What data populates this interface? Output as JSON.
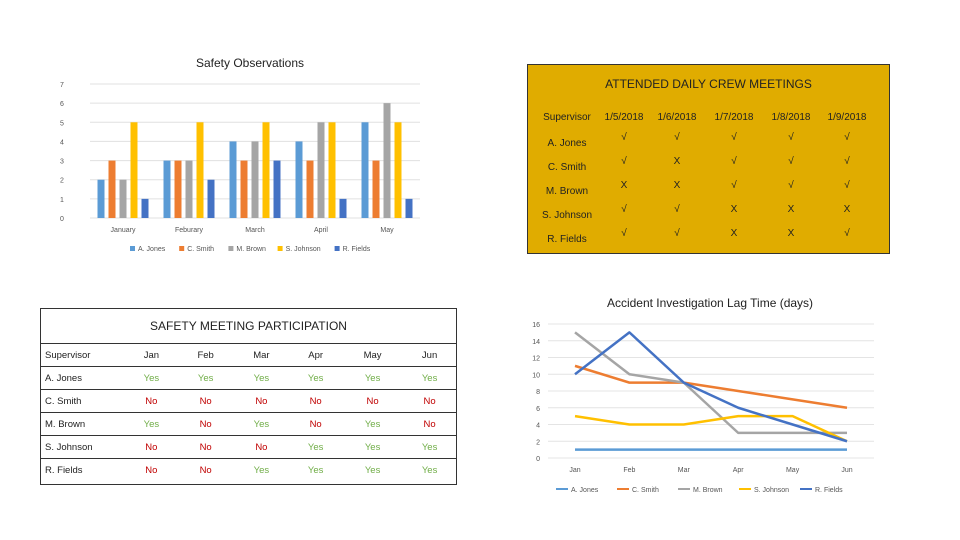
{
  "chart_data": [
    {
      "type": "bar",
      "title": "Safety Observations",
      "categories": [
        "January",
        "Feburary",
        "March",
        "April",
        "May"
      ],
      "ylim": [
        0,
        7
      ],
      "yticks": [
        0,
        1,
        2,
        3,
        4,
        5,
        6,
        7
      ],
      "grid": true,
      "legend": "bottom",
      "series": [
        {
          "name": "A. Jones",
          "color": "#5b9bd5",
          "values": [
            2,
            3,
            4,
            4,
            5
          ]
        },
        {
          "name": "C. Smith",
          "color": "#ed7d31",
          "values": [
            3,
            3,
            3,
            3,
            3
          ]
        },
        {
          "name": "M. Brown",
          "color": "#a5a5a5",
          "values": [
            2,
            3,
            4,
            5,
            6
          ]
        },
        {
          "name": "S. Johnson",
          "color": "#ffc000",
          "values": [
            5,
            5,
            5,
            5,
            5
          ]
        },
        {
          "name": "R. Fields",
          "color": "#4472c4",
          "values": [
            1,
            2,
            3,
            1,
            1
          ]
        }
      ]
    },
    {
      "type": "table",
      "title": "ATTENDED DAILY CREW MEETINGS",
      "background": "#e0ac00",
      "columns": [
        "Supervisor",
        "1/5/2018",
        "1/6/2018",
        "1/7/2018",
        "1/8/2018",
        "1/9/2018"
      ],
      "rows": [
        [
          "A. Jones",
          "√",
          "√",
          "√",
          "√",
          "√"
        ],
        [
          "C. Smith",
          "√",
          "X",
          "√",
          "√",
          "√"
        ],
        [
          "M. Brown",
          "X",
          "X",
          "√",
          "√",
          "√"
        ],
        [
          "S. Johnson",
          "√",
          "√",
          "X",
          "X",
          "X"
        ],
        [
          "R. Fields",
          "√",
          "√",
          "X",
          "X",
          "√"
        ]
      ]
    },
    {
      "type": "table",
      "title": "SAFETY MEETING PARTICIPATION",
      "columns": [
        "Supervisor",
        "Jan",
        "Feb",
        "Mar",
        "Apr",
        "May",
        "Jun"
      ],
      "yes_color": "#70ad47",
      "no_color": "#c00000",
      "rows": [
        [
          "A. Jones",
          "Yes",
          "Yes",
          "Yes",
          "Yes",
          "Yes",
          "Yes"
        ],
        [
          "C. Smith",
          "No",
          "No",
          "No",
          "No",
          "No",
          "No"
        ],
        [
          "M. Brown",
          "Yes",
          "No",
          "Yes",
          "No",
          "Yes",
          "No"
        ],
        [
          "S. Johnson",
          "No",
          "No",
          "No",
          "Yes",
          "Yes",
          "Yes"
        ],
        [
          "R. Fields",
          "No",
          "No",
          "Yes",
          "Yes",
          "Yes",
          "Yes"
        ]
      ]
    },
    {
      "type": "line",
      "title": "Accident Investigation Lag Time (days)",
      "categories": [
        "Jan",
        "Feb",
        "Mar",
        "Apr",
        "May",
        "Jun"
      ],
      "ylim": [
        0,
        16
      ],
      "yticks": [
        0,
        2,
        4,
        6,
        8,
        10,
        12,
        14,
        16
      ],
      "grid": true,
      "legend": "bottom",
      "series": [
        {
          "name": "A. Jones",
          "color": "#5b9bd5",
          "values": [
            1,
            1,
            1,
            1,
            1,
            1
          ]
        },
        {
          "name": "C. Smith",
          "color": "#ed7d31",
          "values": [
            11,
            9,
            9,
            8,
            7,
            6
          ]
        },
        {
          "name": "M. Brown",
          "color": "#a5a5a5",
          "values": [
            15,
            10,
            9,
            3,
            3,
            3
          ]
        },
        {
          "name": "S. Johnson",
          "color": "#ffc000",
          "values": [
            5,
            4,
            4,
            5,
            5,
            2
          ]
        },
        {
          "name": "R. Fields",
          "color": "#4472c4",
          "values": [
            10,
            15,
            9,
            6,
            4,
            2
          ]
        }
      ]
    }
  ]
}
